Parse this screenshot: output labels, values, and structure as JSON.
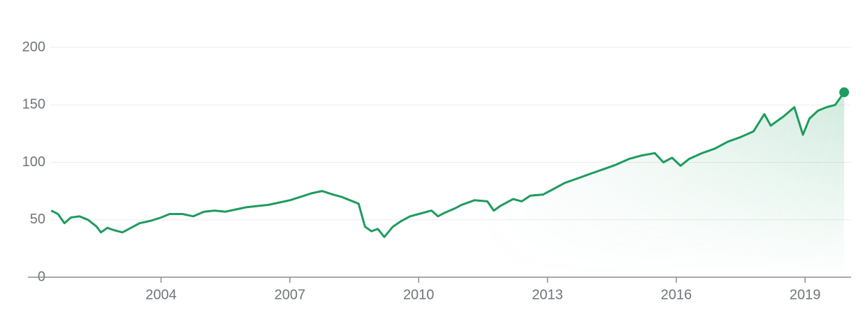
{
  "chart_data": {
    "type": "line",
    "x": [
      2001.44,
      2001.6,
      2001.75,
      2001.9,
      2002.1,
      2002.3,
      2002.5,
      2002.6,
      2002.75,
      2002.9,
      2003.1,
      2003.25,
      2003.5,
      2003.75,
      2004.0,
      2004.2,
      2004.5,
      2004.75,
      2005.0,
      2005.25,
      2005.5,
      2005.75,
      2006.0,
      2006.25,
      2006.5,
      2006.75,
      2007.0,
      2007.25,
      2007.5,
      2007.75,
      2008.0,
      2008.2,
      2008.4,
      2008.6,
      2008.75,
      2008.9,
      2009.05,
      2009.2,
      2009.4,
      2009.6,
      2009.8,
      2010.0,
      2010.3,
      2010.45,
      2010.6,
      2010.85,
      2011.0,
      2011.3,
      2011.6,
      2011.75,
      2011.9,
      2012.2,
      2012.4,
      2012.6,
      2012.9,
      2013.1,
      2013.4,
      2013.7,
      2014.0,
      2014.3,
      2014.6,
      2014.9,
      2015.2,
      2015.5,
      2015.7,
      2015.9,
      2016.1,
      2016.3,
      2016.6,
      2016.9,
      2017.2,
      2017.5,
      2017.8,
      2018.05,
      2018.2,
      2018.5,
      2018.75,
      2018.95,
      2019.1,
      2019.3,
      2019.5,
      2019.7,
      2019.91
    ],
    "series": [
      {
        "color": "#1e9b5e",
        "values": [
          58,
          55,
          47,
          52,
          53,
          50,
          44,
          39,
          43,
          41,
          39,
          42,
          47,
          49,
          52,
          55,
          55,
          53,
          57,
          58,
          57,
          59,
          61,
          62,
          63,
          65,
          67,
          70,
          73,
          75,
          72,
          70,
          67,
          64,
          44,
          40,
          42,
          35,
          44,
          49,
          53,
          55,
          58,
          53,
          56,
          60,
          63,
          67,
          66,
          58,
          62,
          68,
          66,
          71,
          72,
          76,
          82,
          86,
          90,
          94,
          98,
          103,
          106,
          108,
          100,
          104,
          97,
          103,
          108,
          112,
          118,
          122,
          127,
          142,
          132,
          140,
          148,
          124,
          138,
          145,
          148,
          150,
          161
        ]
      }
    ],
    "xlim": [
      2000.9,
      2020.07
    ],
    "xticks": [
      2004,
      2007,
      2010,
      2013,
      2016,
      2019
    ],
    "ylim": [
      0,
      200
    ],
    "yticks": [
      0,
      50,
      100,
      150,
      200
    ],
    "grid": true
  }
}
